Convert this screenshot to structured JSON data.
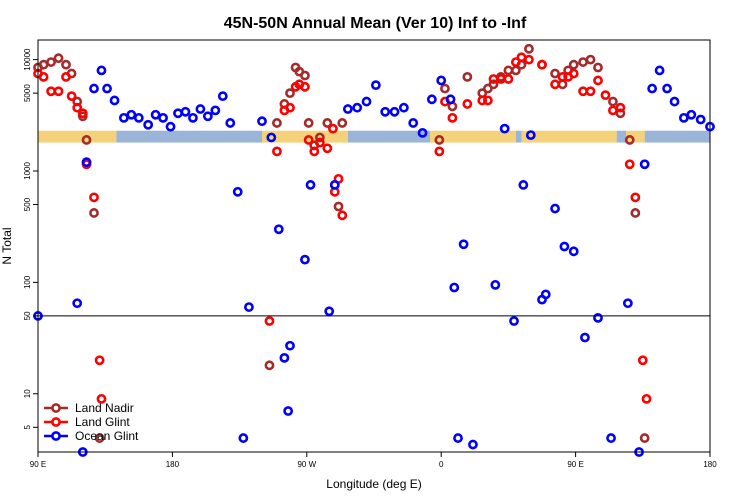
{
  "chart_data": {
    "type": "scatter",
    "title": "45N-50N Annual Mean (Ver 10)   Inf to -Inf",
    "xlabel": "Longitude (deg E)",
    "ylabel": "N Total",
    "xlim": [
      90,
      450
    ],
    "ylim": [
      3,
      15000
    ],
    "yscale": "log",
    "x_ticks": [
      {
        "value": 90,
        "label": "90 E"
      },
      {
        "value": 162,
        "label": "180"
      },
      {
        "value": 234,
        "label": "90 W"
      },
      {
        "value": 306,
        "label": "0"
      },
      {
        "value": 378,
        "label": "90 E"
      },
      {
        "value": 450,
        "label": "180"
      }
    ],
    "y_ticks": [
      {
        "value": 5,
        "label": "5"
      },
      {
        "value": 10,
        "label": "10"
      },
      {
        "value": 50,
        "label": "50"
      },
      {
        "value": 100,
        "label": "100"
      },
      {
        "value": 500,
        "label": "500"
      },
      {
        "value": 1000,
        "label": "1000"
      },
      {
        "value": 5000,
        "label": "5000"
      },
      {
        "value": 10000,
        "label": "10000"
      }
    ],
    "hline": 50,
    "surface_band": {
      "y_bottom": 1800,
      "y_top": 2300,
      "colors": {
        "land": "#f5d27a",
        "ocean": "#9bb5d9"
      },
      "segments": [
        {
          "type": "land",
          "x0": 90,
          "x1": 132
        },
        {
          "type": "ocean",
          "x0": 132,
          "x1": 210
        },
        {
          "type": "land",
          "x0": 210,
          "x1": 256
        },
        {
          "type": "ocean",
          "x0": 256,
          "x1": 300
        },
        {
          "type": "land",
          "x0": 300,
          "x1": 346
        },
        {
          "type": "ocean",
          "x0": 346,
          "x1": 349
        },
        {
          "type": "land",
          "x0": 349,
          "x1": 400
        },
        {
          "type": "ocean",
          "x0": 400,
          "x1": 405
        },
        {
          "type": "land",
          "x0": 405,
          "x1": 415
        },
        {
          "type": "ocean",
          "x0": 415,
          "x1": 450
        }
      ]
    },
    "series": [
      {
        "name": "Land Nadir",
        "color": "#a52a2a",
        "points": [
          [
            90,
            8500
          ],
          [
            93,
            9000
          ],
          [
            97,
            9500
          ],
          [
            101,
            10300
          ],
          [
            105,
            9000
          ],
          [
            108,
            7500
          ],
          [
            111,
            4200
          ],
          [
            114,
            3100
          ],
          [
            116,
            1900
          ],
          [
            120,
            420
          ],
          [
            123,
            4
          ],
          [
            214,
            18
          ],
          [
            218,
            2700
          ],
          [
            222,
            4000
          ],
          [
            225,
            5000
          ],
          [
            228,
            8500
          ],
          [
            230,
            7800
          ],
          [
            233,
            7200
          ],
          [
            235,
            2700
          ],
          [
            238,
            1700
          ],
          [
            241,
            2000
          ],
          [
            245,
            2700
          ],
          [
            249,
            750
          ],
          [
            251,
            480
          ],
          [
            253,
            2700
          ],
          [
            305,
            1900
          ],
          [
            308,
            5500
          ],
          [
            312,
            3800
          ],
          [
            320,
            7000
          ],
          [
            328,
            5000
          ],
          [
            331,
            5500
          ],
          [
            334,
            6000
          ],
          [
            338,
            7000
          ],
          [
            342,
            8000
          ],
          [
            346,
            8000
          ],
          [
            349,
            9000
          ],
          [
            353,
            12500
          ],
          [
            360,
            9000
          ],
          [
            367,
            7500
          ],
          [
            371,
            6000
          ],
          [
            374,
            8000
          ],
          [
            377,
            9000
          ],
          [
            382,
            9500
          ],
          [
            386,
            10000
          ],
          [
            390,
            8500
          ],
          [
            398,
            4200
          ],
          [
            402,
            3300
          ],
          [
            407,
            1900
          ],
          [
            410,
            420
          ],
          [
            415,
            4
          ]
        ]
      },
      {
        "name": "Land Glint",
        "color": "#ff0000",
        "points": [
          [
            90,
            7500
          ],
          [
            93,
            7000
          ],
          [
            97,
            5200
          ],
          [
            101,
            5200
          ],
          [
            105,
            7000
          ],
          [
            108,
            4700
          ],
          [
            111,
            3700
          ],
          [
            114,
            3300
          ],
          [
            116,
            1150
          ],
          [
            120,
            580
          ],
          [
            123,
            20
          ],
          [
            124,
            9
          ],
          [
            214,
            45
          ],
          [
            218,
            1500
          ],
          [
            222,
            3500
          ],
          [
            225,
            3700
          ],
          [
            228,
            5700
          ],
          [
            230,
            6000
          ],
          [
            233,
            5700
          ],
          [
            235,
            1900
          ],
          [
            238,
            1500
          ],
          [
            241,
            1800
          ],
          [
            245,
            1600
          ],
          [
            248,
            2400
          ],
          [
            249,
            650
          ],
          [
            251,
            850
          ],
          [
            253,
            400
          ],
          [
            305,
            1500
          ],
          [
            308,
            4200
          ],
          [
            312,
            3000
          ],
          [
            320,
            4000
          ],
          [
            328,
            4300
          ],
          [
            331,
            4300
          ],
          [
            334,
            6700
          ],
          [
            338,
            6700
          ],
          [
            342,
            6700
          ],
          [
            346,
            9500
          ],
          [
            349,
            10500
          ],
          [
            353,
            10000
          ],
          [
            360,
            9000
          ],
          [
            367,
            6000
          ],
          [
            371,
            7000
          ],
          [
            374,
            7000
          ],
          [
            377,
            7500
          ],
          [
            382,
            5200
          ],
          [
            386,
            5200
          ],
          [
            390,
            6500
          ],
          [
            394,
            4800
          ],
          [
            398,
            3500
          ],
          [
            402,
            3700
          ],
          [
            407,
            1150
          ],
          [
            410,
            580
          ],
          [
            414,
            20
          ],
          [
            416,
            9
          ]
        ]
      },
      {
        "name": "Ocean Glint",
        "color": "#0000ff",
        "points": [
          [
            90,
            50
          ],
          [
            111,
            65
          ],
          [
            114,
            3
          ],
          [
            116,
            1200
          ],
          [
            120,
            5500
          ],
          [
            124,
            8000
          ],
          [
            127,
            5500
          ],
          [
            131,
            4300
          ],
          [
            136,
            3000
          ],
          [
            140,
            3200
          ],
          [
            144,
            3000
          ],
          [
            149,
            2600
          ],
          [
            153,
            3200
          ],
          [
            157,
            3000
          ],
          [
            161,
            2500
          ],
          [
            165,
            3300
          ],
          [
            169,
            3400
          ],
          [
            173,
            3000
          ],
          [
            177,
            3600
          ],
          [
            181,
            3100
          ],
          [
            185,
            3500
          ],
          [
            189,
            4700
          ],
          [
            193,
            2700
          ],
          [
            197,
            650
          ],
          [
            200,
            4
          ],
          [
            203,
            60
          ],
          [
            210,
            2800
          ],
          [
            215,
            2000
          ],
          [
            219,
            300
          ],
          [
            222,
            21
          ],
          [
            224,
            7
          ],
          [
            225,
            27
          ],
          [
            233,
            160
          ],
          [
            236,
            750
          ],
          [
            246,
            55
          ],
          [
            249,
            750
          ],
          [
            256,
            3600
          ],
          [
            261,
            3700
          ],
          [
            266,
            4200
          ],
          [
            271,
            5900
          ],
          [
            276,
            3400
          ],
          [
            281,
            3400
          ],
          [
            286,
            3700
          ],
          [
            291,
            2700
          ],
          [
            296,
            2200
          ],
          [
            301,
            4400
          ],
          [
            306,
            6500
          ],
          [
            311,
            4400
          ],
          [
            313,
            90
          ],
          [
            315,
            4
          ],
          [
            318,
            220
          ],
          [
            323,
            3.5
          ],
          [
            335,
            95
          ],
          [
            340,
            2400
          ],
          [
            345,
            45
          ],
          [
            350,
            750
          ],
          [
            354,
            2100
          ],
          [
            360,
            70
          ],
          [
            362,
            78
          ],
          [
            367,
            460
          ],
          [
            372,
            210
          ],
          [
            377,
            190
          ],
          [
            383,
            32
          ],
          [
            390,
            48
          ],
          [
            397,
            4
          ],
          [
            406,
            65
          ],
          [
            412,
            3
          ],
          [
            415,
            1150
          ],
          [
            419,
            5500
          ],
          [
            423,
            8000
          ],
          [
            427,
            5500
          ],
          [
            431,
            4200
          ],
          [
            436,
            3000
          ],
          [
            440,
            3200
          ],
          [
            445,
            2900
          ],
          [
            450,
            2500
          ]
        ]
      }
    ],
    "legend": {
      "placement": "bottom-left",
      "entries": [
        "Land Nadir",
        "Land Glint",
        "Ocean Glint"
      ]
    }
  }
}
